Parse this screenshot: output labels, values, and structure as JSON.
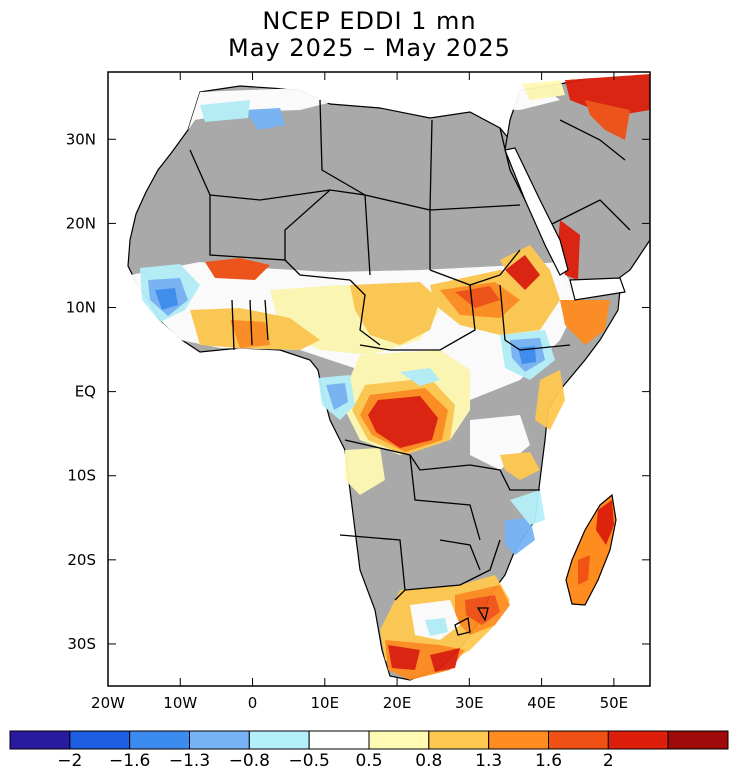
{
  "title": {
    "line1": "NCEP EDDI 1 mn",
    "line2": "May 2025 – May 2025"
  },
  "map": {
    "region": "Africa",
    "lon_range": [
      -20,
      55
    ],
    "lat_range": [
      -35,
      38
    ],
    "x_ticks": [
      "20W",
      "10W",
      "0",
      "10E",
      "20E",
      "30E",
      "40E",
      "50E"
    ],
    "y_ticks": [
      "30N",
      "20N",
      "10N",
      "EQ",
      "10S",
      "20S",
      "30S"
    ],
    "masked_color": "#a9a9a9"
  },
  "colorbar": {
    "colors": [
      "#2a1aa0",
      "#1c5fe0",
      "#3c8cf0",
      "#78b4f5",
      "#b4f0fa",
      "#ffffff",
      "#fffab4",
      "#ffc850",
      "#ff8c1e",
      "#f05014",
      "#dc1e0a",
      "#a00a0a"
    ],
    "labels": [
      "−2",
      "−1.6",
      "−1.3",
      "−0.8",
      "−0.5",
      "0.5",
      "0.8",
      "1.3",
      "1.6",
      "2"
    ]
  }
}
